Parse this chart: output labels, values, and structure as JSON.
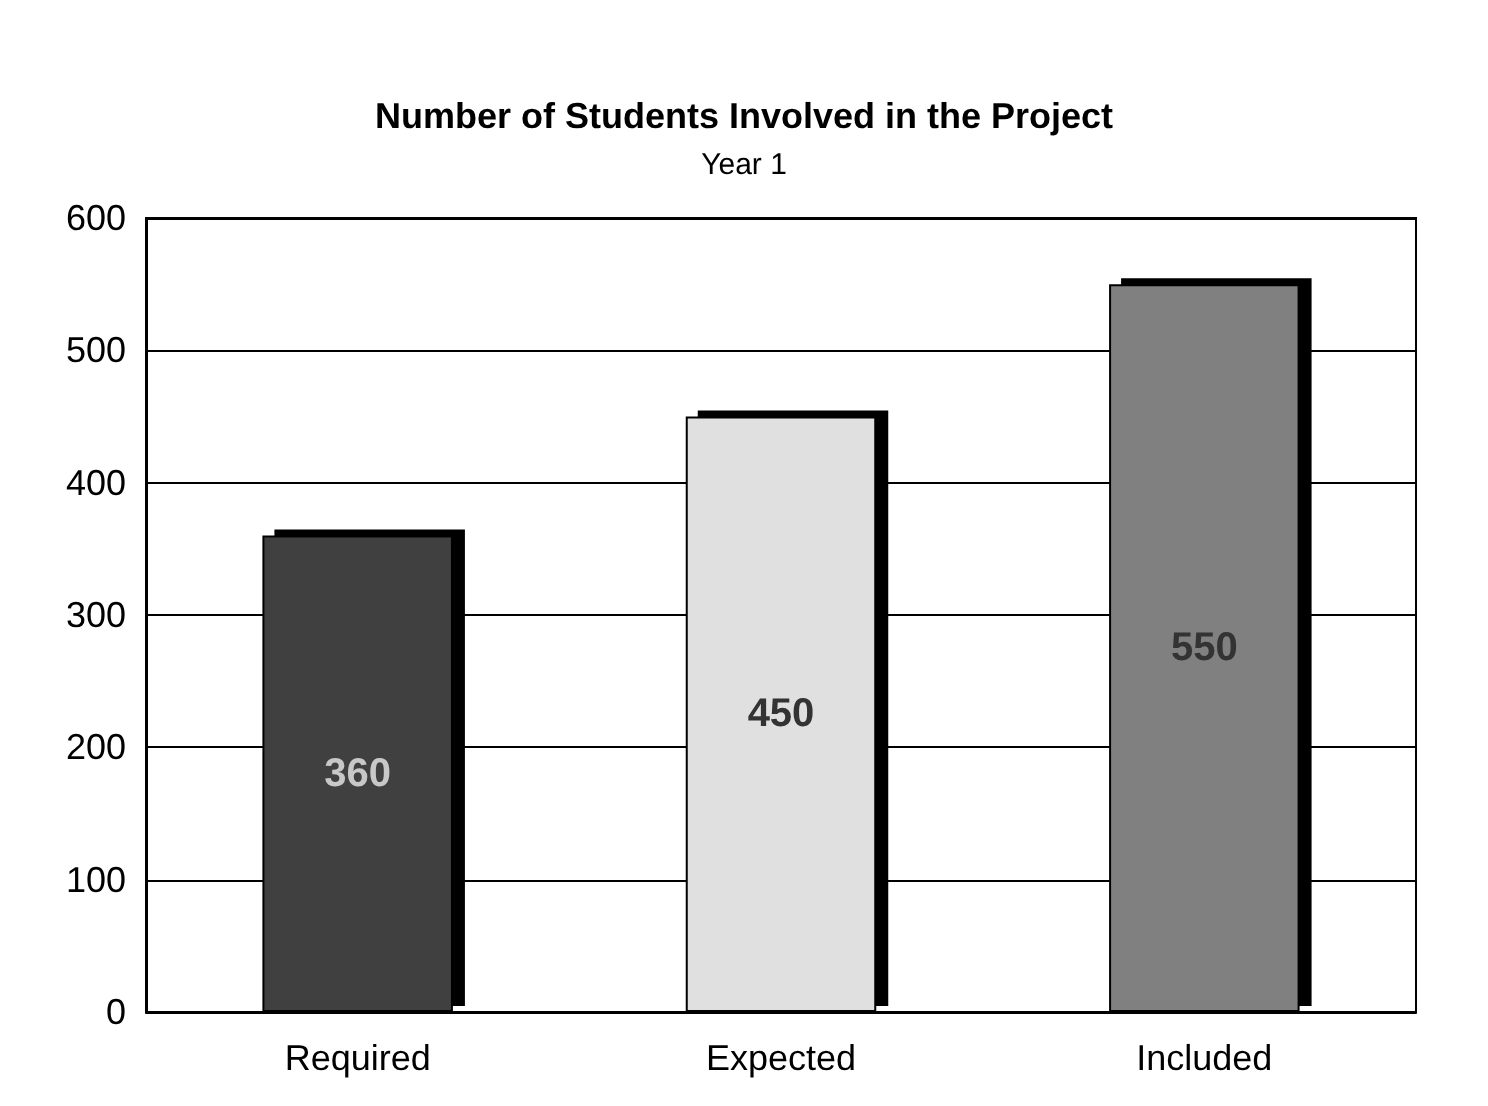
{
  "chart_data": {
    "type": "bar",
    "title": "Number of Students Involved in the Project",
    "subtitle": "Year 1",
    "categories": [
      "Required",
      "Expected",
      "Included"
    ],
    "values": [
      360,
      450,
      550
    ],
    "colors": [
      "#404040",
      "#e0e0e0",
      "#808080"
    ],
    "ylim": [
      0,
      600
    ],
    "yticks": [
      0,
      100,
      200,
      300,
      400,
      500,
      600
    ],
    "grid": "y",
    "data_labels": true
  }
}
